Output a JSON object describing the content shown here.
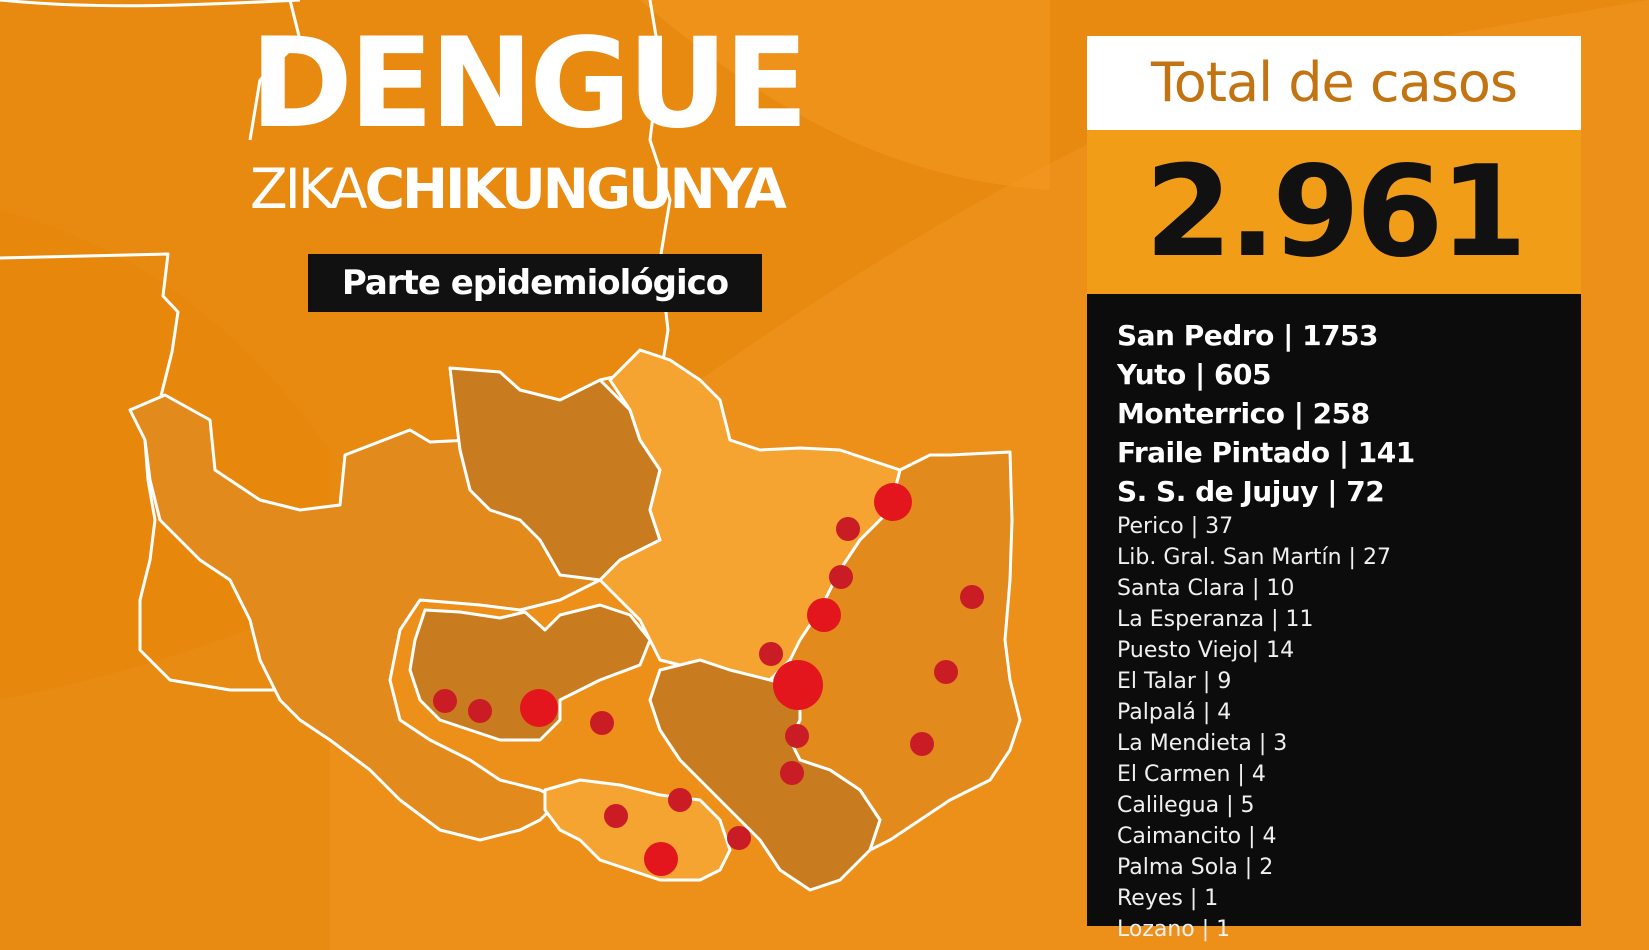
{
  "title": {
    "main": "DENGUE",
    "sub_thin": "ZIKA",
    "sub_bold": "CHIKUNGUNYA",
    "tag": "Parte epidemiológico"
  },
  "total": {
    "label": "Total de casos",
    "value": "2.961"
  },
  "cases": [
    {
      "text": "San Pedro | 1753",
      "major": true
    },
    {
      "text": "Yuto | 605",
      "major": true
    },
    {
      "text": "Monterrico | 258",
      "major": true
    },
    {
      "text": "Fraile Pintado | 141",
      "major": true
    },
    {
      "text": "S. S. de Jujuy | 72",
      "major": true
    },
    {
      "text": "Perico | 37",
      "major": false
    },
    {
      "text": "Lib. Gral. San Martín | 27",
      "major": false
    },
    {
      "text": "Santa Clara | 10",
      "major": false
    },
    {
      "text": "La Esperanza | 11",
      "major": false
    },
    {
      "text": "Puesto Viejo| 14",
      "major": false
    },
    {
      "text": "El Talar | 9",
      "major": false
    },
    {
      "text": "Palpalá  | 4",
      "major": false
    },
    {
      "text": "La Mendieta | 3",
      "major": false
    },
    {
      "text": "El Carmen | 4",
      "major": false
    },
    {
      "text": "Calilegua | 5",
      "major": false
    },
    {
      "text": "Caimancito | 4",
      "major": false
    },
    {
      "text": "Palma Sola | 2",
      "major": false
    },
    {
      "text": "Reyes | 1",
      "major": false
    },
    {
      "text": "Lozano | 1",
      "major": false
    }
  ],
  "colors": {
    "background": "#e98a10",
    "region_light": "#f6a431",
    "region_dark": "#c97c1f",
    "border": "#ffffff",
    "dot_large": "#e3151d",
    "dot_small": "#c91c25",
    "panel_accent": "#f29d18"
  },
  "map_markers": {
    "large": 5,
    "small": 17
  }
}
